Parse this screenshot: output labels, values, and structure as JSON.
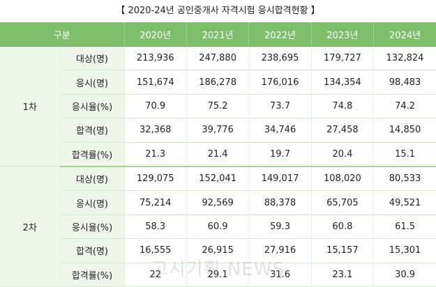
{
  "title": "【 2020-24년 공인중개사 자격시험 응시합격현황 】",
  "table": {
    "header": [
      "구분",
      "2020년",
      "2021년",
      "2022년",
      "2023년",
      "2024년"
    ],
    "groups": [
      {
        "round": "1차",
        "rows": [
          {
            "label": "대상(명)",
            "values": [
              "213,936",
              "247,880",
              "238,695",
              "179,727",
              "132,824"
            ]
          },
          {
            "label": "응시(명)",
            "values": [
              "151,674",
              "186,278",
              "176,016",
              "134,354",
              "98,483"
            ]
          },
          {
            "label": "응시율(%)",
            "values": [
              "70.9",
              "75.2",
              "73.7",
              "74.8",
              "74.2"
            ]
          },
          {
            "label": "합격(명)",
            "values": [
              "32,368",
              "39,776",
              "34,746",
              "27,458",
              "14,850"
            ]
          },
          {
            "label": "합격률(%)",
            "values": [
              "21.3",
              "21.4",
              "19.7",
              "20.4",
              "15.1"
            ]
          }
        ]
      },
      {
        "round": "2차",
        "rows": [
          {
            "label": "대상(명)",
            "values": [
              "129,075",
              "152,041",
              "149,017",
              "108,020",
              "80,533"
            ]
          },
          {
            "label": "응시(명)",
            "values": [
              "75,214",
              "92,569",
              "88,378",
              "65,705",
              "49,521"
            ]
          },
          {
            "label": "응시율(%)",
            "values": [
              "58.3",
              "60.9",
              "59.3",
              "60.8",
              "61.5"
            ]
          },
          {
            "label": "합격(명)",
            "values": [
              "16,555",
              "26,915",
              "27,916",
              "15,157",
              "15,301"
            ]
          },
          {
            "label": "합격률(%)",
            "values": [
              "22",
              "29.1",
              "31.6",
              "23.1",
              "30.9"
            ]
          }
        ]
      }
    ]
  },
  "watermark": "고시기획 NEWS",
  "colors": {
    "header_bg": "#7dbf6b",
    "label_bg": "#eef7e9",
    "group_divider": "#a8cf98"
  }
}
